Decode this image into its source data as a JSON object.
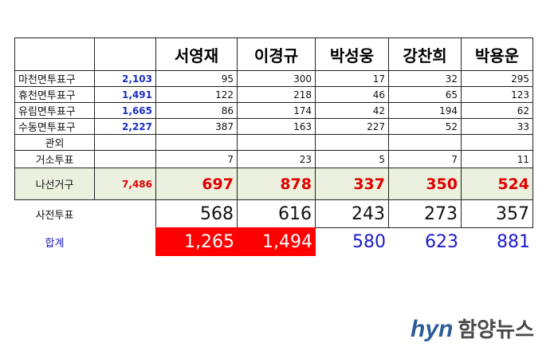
{
  "table": {
    "header": [
      "서영재",
      "이경규",
      "박성웅",
      "강찬희",
      "박용운"
    ],
    "rows": [
      {
        "label": "마천면투표구",
        "total": "2,103",
        "values": [
          "95",
          "300",
          "17",
          "32",
          "295"
        ]
      },
      {
        "label": "휴천면투표구",
        "total": "1,491",
        "values": [
          "122",
          "218",
          "46",
          "65",
          "123"
        ]
      },
      {
        "label": "유림면투표구",
        "total": "1,665",
        "values": [
          "86",
          "174",
          "42",
          "194",
          "62"
        ]
      },
      {
        "label": "수동면투표구",
        "total": "2,227",
        "values": [
          "387",
          "163",
          "227",
          "52",
          "33"
        ]
      },
      {
        "label": "관외"
      },
      {
        "label": "거소투표",
        "values": [
          "7",
          "23",
          "5",
          "7",
          "11"
        ]
      },
      {
        "label": "나선거구",
        "total": "7,486",
        "values": [
          "697",
          "878",
          "337",
          "350",
          "524"
        ]
      },
      {
        "label": "사전투표",
        "values": [
          "568",
          "616",
          "243",
          "273",
          "357"
        ]
      },
      {
        "label": "합계",
        "values": [
          "1,265",
          "1,494",
          "580",
          "623",
          "881"
        ]
      }
    ]
  },
  "logo": {
    "brand": "hyn",
    "name": "함양뉴스"
  }
}
